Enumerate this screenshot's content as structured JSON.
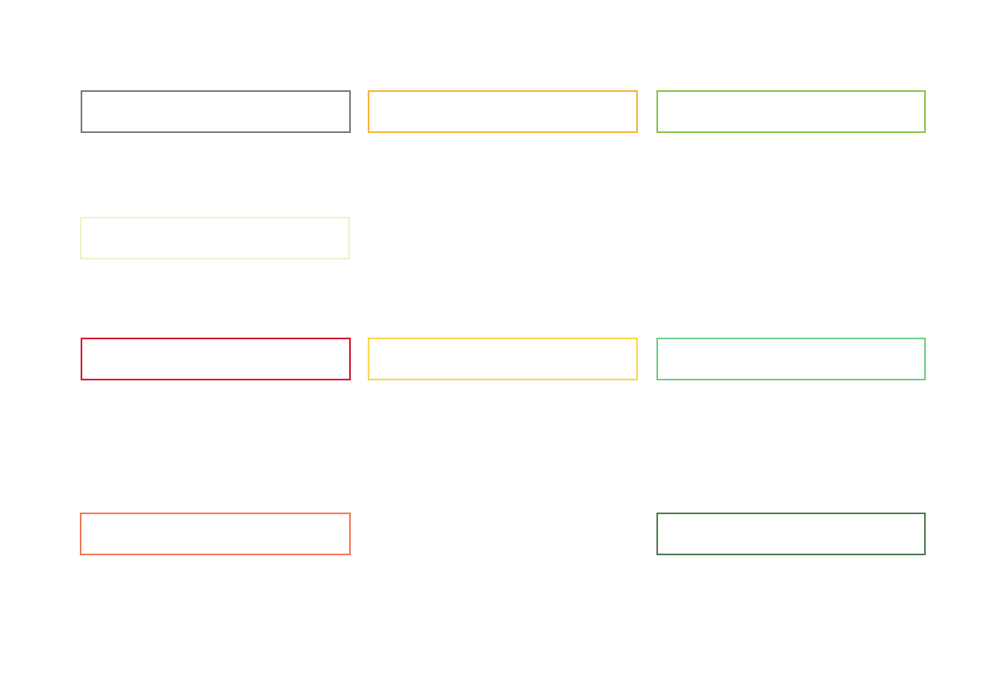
{
  "boxes": [
    {
      "color": "#7a7a7a"
    },
    {
      "color": "#f7b538"
    },
    {
      "color": "#8bc34a"
    },
    {
      "color": "#e8f5c8"
    },
    {
      "color": "#d7142a"
    },
    {
      "color": "#fbd54a"
    },
    {
      "color": "#70cb8c"
    },
    {
      "color": "#f47a55"
    },
    {
      "color": "#4e7a4c"
    }
  ]
}
